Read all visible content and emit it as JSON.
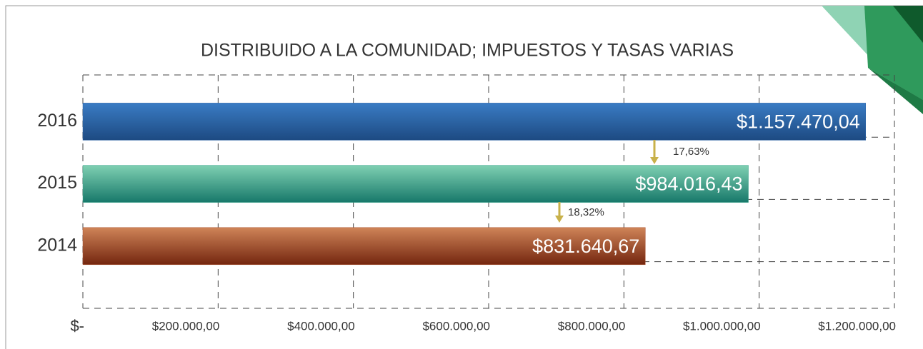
{
  "chart_data": {
    "type": "bar",
    "orientation": "horizontal",
    "title": "DISTRIBUIDO A LA COMUNIDAD; IMPUESTOS Y TASAS VARIAS",
    "categories": [
      "2016",
      "2015",
      "2014"
    ],
    "values": [
      1157470.04,
      984016.43,
      831640.67
    ],
    "value_labels": [
      "$1.157.470,04",
      "$984.016,43",
      "$831.640,67"
    ],
    "colors": [
      "#2b63a8",
      "#3aa38a",
      "#a9502c"
    ],
    "xlim": [
      0,
      1200000
    ],
    "xticks": [
      {
        "value": 0,
        "label": "$-"
      },
      {
        "value": 200000,
        "label": "$200.000,00"
      },
      {
        "value": 400000,
        "label": "$400.000,00"
      },
      {
        "value": 600000,
        "label": "$600.000,00"
      },
      {
        "value": 800000,
        "label": "$800.000,00"
      },
      {
        "value": 1000000,
        "label": "$1.000.000,00"
      },
      {
        "value": 1200000,
        "label": "$1.200.000,00"
      }
    ],
    "annotations": [
      "17,63%",
      "18,32%"
    ],
    "grid": true
  }
}
